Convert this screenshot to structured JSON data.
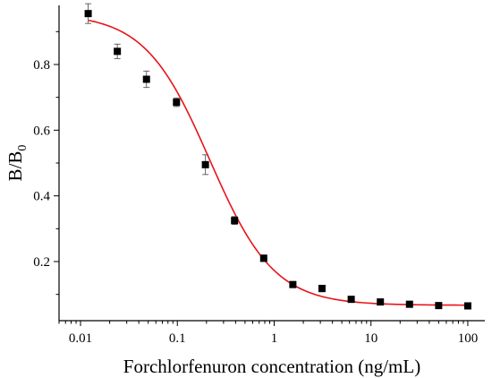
{
  "chart_data": {
    "type": "scatter",
    "title": "",
    "xlabel": "Forchlorfenuron concentration (ng/mL)",
    "ylabel": {
      "main": "B/B",
      "subscript": "0"
    },
    "xscale": "log",
    "xlim": [
      0.006,
      150
    ],
    "ylim": [
      0.02,
      0.98
    ],
    "x_ticks": [
      0.01,
      0.1,
      1,
      10,
      100
    ],
    "x_tick_labels": [
      "0.01",
      "0.1",
      "1",
      "10",
      "100"
    ],
    "y_ticks": [
      0.2,
      0.4,
      0.6,
      0.8
    ],
    "y_tick_labels": [
      "0.2",
      "0.4",
      "0.6",
      "0.8"
    ],
    "grid": false,
    "legend": null,
    "series": [
      {
        "marker": "square",
        "color": "#000000",
        "points": [
          {
            "x": 0.012,
            "y": 0.955,
            "err": 0.03
          },
          {
            "x": 0.024,
            "y": 0.84,
            "err": 0.022
          },
          {
            "x": 0.048,
            "y": 0.755,
            "err": 0.025
          },
          {
            "x": 0.098,
            "y": 0.685,
            "err": 0.013
          },
          {
            "x": 0.195,
            "y": 0.495,
            "err": 0.03
          },
          {
            "x": 0.39,
            "y": 0.325,
            "err": 0.012
          },
          {
            "x": 0.78,
            "y": 0.21,
            "err": 0.01
          },
          {
            "x": 1.56,
            "y": 0.13,
            "err": 0.006
          },
          {
            "x": 3.12,
            "y": 0.118,
            "err": 0.01
          },
          {
            "x": 6.25,
            "y": 0.085,
            "err": 0.006
          },
          {
            "x": 12.5,
            "y": 0.077,
            "err": 0.005
          },
          {
            "x": 25,
            "y": 0.07,
            "err": 0.004
          },
          {
            "x": 50,
            "y": 0.066,
            "err": 0.003
          },
          {
            "x": 100,
            "y": 0.065,
            "err": 0.003
          }
        ]
      }
    ],
    "fit": {
      "type": "four-parameter-logistic",
      "color": "#e8141a",
      "x_range": [
        0.012,
        100
      ],
      "top": 0.955,
      "bottom": 0.067,
      "ic50": 0.215,
      "slope": 1.3
    }
  }
}
